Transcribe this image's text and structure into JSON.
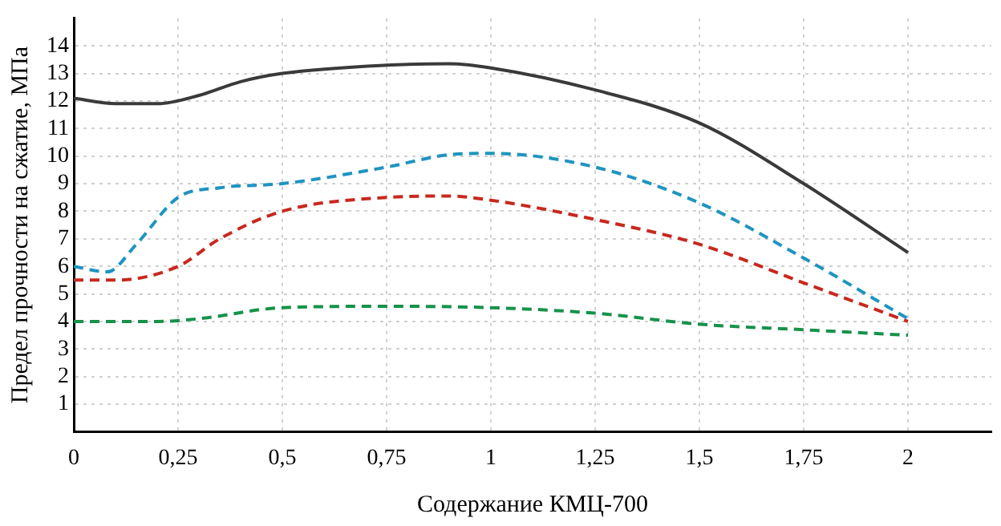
{
  "chart_data": {
    "type": "line",
    "xlabel": "Содержание КМЦ-700",
    "ylabel": "Предел прочности на сжатие, МПа",
    "xlim": [
      0,
      2.2
    ],
    "xticks": [
      0,
      {
        "value": 0.25,
        "label": "0,25"
      },
      {
        "value": 0.5,
        "label": "0,5"
      },
      {
        "value": 0.75,
        "label": "0,75"
      },
      1,
      {
        "value": 1.25,
        "label": "1,25"
      },
      {
        "value": 1.5,
        "label": "1,5"
      },
      {
        "value": 1.75,
        "label": "1,75"
      },
      2
    ],
    "ylim": [
      0,
      15
    ],
    "yticks": [
      1,
      2,
      3,
      4,
      5,
      6,
      7,
      8,
      9,
      10,
      11,
      12,
      13,
      14
    ],
    "grid": true,
    "legend": false,
    "marker": "none",
    "series": [
      {
        "color": "#3a3a3a",
        "line_style": "solid",
        "x": [
          0,
          0.1,
          0.2,
          0.3,
          0.4,
          0.5,
          0.75,
          0.9,
          1,
          1.25,
          1.5,
          1.75,
          2
        ],
        "values": [
          12.1,
          11.9,
          11.9,
          12.2,
          12.7,
          13.0,
          13.3,
          13.35,
          13.2,
          12.4,
          11.2,
          9.0,
          6.5
        ]
      },
      {
        "color": "#1f94c0",
        "line_style": "dashed",
        "x": [
          0,
          0.08,
          0.15,
          0.25,
          0.35,
          0.5,
          0.75,
          0.9,
          1,
          1.25,
          1.5,
          1.75,
          2
        ],
        "values": [
          6.0,
          5.8,
          6.8,
          8.5,
          8.85,
          9.0,
          9.6,
          10.05,
          10.1,
          9.6,
          8.3,
          6.3,
          4.1
        ]
      },
      {
        "color": "#c8281e",
        "line_style": "dashed",
        "x": [
          0,
          0.1,
          0.25,
          0.35,
          0.5,
          0.75,
          0.9,
          1,
          1.25,
          1.5,
          1.75,
          2
        ],
        "values": [
          5.5,
          5.5,
          6.0,
          7.0,
          8.0,
          8.5,
          8.55,
          8.4,
          7.7,
          6.8,
          5.4,
          4.0
        ]
      },
      {
        "color": "#17924a",
        "line_style": "dashed",
        "x": [
          0,
          0.2,
          0.3,
          0.5,
          0.75,
          1,
          1.25,
          1.5,
          1.75,
          2
        ],
        "values": [
          4.0,
          4.0,
          4.1,
          4.5,
          4.55,
          4.5,
          4.3,
          3.9,
          3.7,
          3.5
        ]
      }
    ]
  }
}
